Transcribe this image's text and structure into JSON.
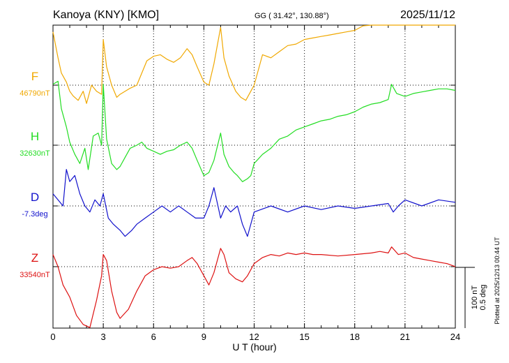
{
  "header": {
    "station": "Kanoya (KNY)  [KMO]",
    "coords": "GG ( 31.42°, 130.88°)",
    "date": "2025/11/12"
  },
  "footer": {
    "plotted": "Plotted at 2025/12/13 00:44 UT"
  },
  "scale": {
    "nt": "100 nT",
    "deg": "0.5 deg"
  },
  "chart_data": {
    "type": "line",
    "xlabel": "U T (hour)",
    "xlim": [
      0,
      24
    ],
    "xticks": [
      "0",
      "3",
      "6",
      "9",
      "12",
      "15",
      "18",
      "21",
      "24"
    ],
    "grid": true,
    "series": [
      {
        "name": "F",
        "baseline": "46790nT",
        "color": "#f0a800",
        "x": [
          0,
          0.3,
          0.5,
          0.8,
          1.0,
          1.2,
          1.5,
          1.8,
          2.0,
          2.3,
          2.6,
          2.9,
          3.0,
          3.2,
          3.5,
          3.8,
          4.0,
          4.3,
          4.6,
          5.0,
          5.3,
          5.6,
          6.0,
          6.4,
          6.8,
          7.2,
          7.6,
          8.0,
          8.3,
          8.6,
          9.0,
          9.3,
          9.6,
          10.0,
          10.2,
          10.5,
          10.9,
          11.2,
          11.5,
          11.8,
          12.0,
          12.5,
          13.0,
          13.5,
          14.0,
          14.5,
          15.0,
          15.5,
          16.0,
          16.5,
          17.0,
          17.5,
          18.0,
          18.5,
          19.0,
          19.5,
          20.0,
          20.3,
          20.8,
          21.3,
          21.8,
          22.3,
          22.8,
          23.3,
          23.8,
          24.0
        ],
        "y": [
          175,
          90,
          40,
          10,
          -20,
          -35,
          -50,
          -20,
          -60,
          0,
          -20,
          -30,
          150,
          60,
          0,
          -40,
          -30,
          -20,
          -10,
          0,
          40,
          80,
          95,
          100,
          85,
          75,
          90,
          120,
          100,
          60,
          10,
          0,
          70,
          190,
          90,
          30,
          -20,
          -40,
          -50,
          -20,
          0,
          100,
          90,
          110,
          130,
          135,
          150,
          155,
          160,
          165,
          170,
          175,
          180,
          195,
          200,
          210,
          230,
          250,
          230,
          245,
          240,
          235,
          245,
          240,
          235,
          230
        ]
      },
      {
        "name": "H",
        "baseline": "32630nT",
        "color": "#22dd22",
        "x": [
          0,
          0.3,
          0.5,
          0.8,
          1.0,
          1.3,
          1.6,
          1.9,
          2.1,
          2.4,
          2.7,
          2.9,
          3.0,
          3.2,
          3.5,
          3.8,
          4.0,
          4.3,
          4.6,
          5.0,
          5.3,
          5.6,
          6.0,
          6.4,
          6.8,
          7.2,
          7.6,
          8.0,
          8.3,
          8.6,
          9.0,
          9.3,
          9.6,
          10.0,
          10.2,
          10.5,
          10.8,
          11.0,
          11.3,
          11.6,
          11.8,
          12.0,
          12.5,
          13.0,
          13.5,
          14.0,
          14.5,
          15.0,
          15.5,
          16.0,
          16.5,
          17.0,
          17.5,
          18.0,
          18.5,
          19.0,
          19.5,
          20.0,
          20.2,
          20.5,
          21.0,
          21.5,
          22.0,
          22.5,
          23.0,
          23.5,
          24.0
        ],
        "y": [
          200,
          210,
          120,
          60,
          10,
          -30,
          -60,
          -10,
          -80,
          30,
          40,
          0,
          200,
          20,
          -60,
          -80,
          -70,
          -40,
          -10,
          0,
          10,
          -10,
          -20,
          -30,
          -20,
          -15,
          0,
          10,
          -10,
          -50,
          -100,
          -90,
          -50,
          40,
          -30,
          -70,
          -90,
          -100,
          -120,
          -110,
          -100,
          -60,
          -30,
          -10,
          20,
          30,
          50,
          60,
          70,
          80,
          85,
          95,
          100,
          110,
          125,
          135,
          140,
          150,
          200,
          170,
          160,
          170,
          175,
          180,
          185,
          185,
          180
        ]
      },
      {
        "name": "D",
        "baseline": "-7.3deg",
        "color": "#1010cc",
        "x": [
          0,
          0.3,
          0.6,
          0.8,
          1.0,
          1.3,
          1.6,
          1.9,
          2.2,
          2.5,
          2.8,
          3.0,
          3.3,
          3.6,
          4.0,
          4.3,
          4.7,
          5.0,
          5.5,
          6.0,
          6.5,
          7.0,
          7.5,
          8.0,
          8.5,
          9.0,
          9.3,
          9.6,
          10.0,
          10.3,
          10.6,
          11.0,
          11.3,
          11.6,
          12.0,
          13.0,
          14.0,
          15.0,
          16.0,
          17.0,
          18.0,
          19.0,
          20.0,
          20.3,
          20.6,
          21.0,
          22.0,
          23.0,
          24.0
        ],
        "y": [
          0.1,
          0.05,
          0.0,
          0.3,
          0.2,
          0.25,
          0.1,
          0.0,
          -0.05,
          0.05,
          0.0,
          0.1,
          -0.1,
          -0.15,
          -0.2,
          -0.25,
          -0.2,
          -0.15,
          -0.1,
          -0.05,
          0.0,
          -0.05,
          0.0,
          -0.05,
          -0.1,
          -0.1,
          0.0,
          0.15,
          -0.1,
          0.0,
          -0.05,
          0.0,
          -0.15,
          -0.25,
          -0.05,
          0.0,
          -0.05,
          0.0,
          -0.03,
          0.0,
          -0.02,
          0.0,
          0.02,
          -0.05,
          0.0,
          0.05,
          0.0,
          0.05,
          0.03
        ]
      },
      {
        "name": "Z",
        "baseline": "33540nT",
        "color": "#dd1111",
        "x": [
          0,
          0.3,
          0.6,
          1.0,
          1.4,
          1.8,
          2.2,
          2.6,
          2.9,
          3.0,
          3.2,
          3.5,
          3.8,
          4.0,
          4.5,
          5.0,
          5.5,
          6.0,
          6.5,
          7.0,
          7.5,
          8.0,
          8.3,
          8.6,
          9.0,
          9.3,
          9.6,
          10.0,
          10.2,
          10.5,
          10.9,
          11.3,
          11.6,
          12.0,
          12.5,
          13.0,
          13.5,
          14.0,
          14.5,
          15.0,
          15.5,
          16.0,
          17.0,
          18.0,
          19.0,
          19.5,
          20.0,
          20.2,
          20.6,
          21.0,
          21.5,
          22.0,
          22.5,
          23.0,
          23.5,
          24.0
        ],
        "y": [
          40,
          0,
          -60,
          -100,
          -160,
          -190,
          -200,
          -110,
          -30,
          40,
          20,
          -80,
          -150,
          -170,
          -140,
          -80,
          -30,
          -10,
          0,
          -5,
          0,
          20,
          30,
          10,
          -30,
          -60,
          -20,
          60,
          40,
          -20,
          -40,
          -50,
          -30,
          10,
          30,
          40,
          35,
          45,
          40,
          45,
          40,
          40,
          35,
          40,
          45,
          50,
          45,
          65,
          40,
          45,
          30,
          25,
          20,
          15,
          10,
          0
        ]
      }
    ]
  }
}
